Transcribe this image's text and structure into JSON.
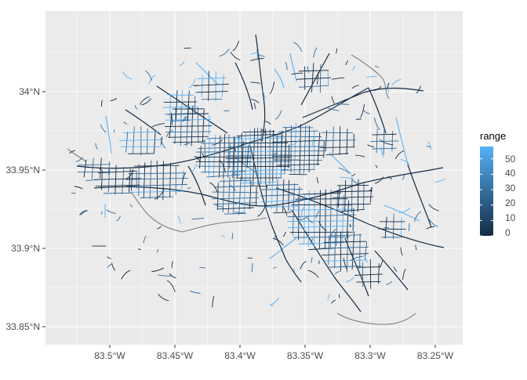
{
  "map": {
    "x_ticks": [
      "83.5°W",
      "83.45°W",
      "83.4°W",
      "83.35°W",
      "83.3°W",
      "83.25°W"
    ],
    "y_ticks": [
      "34°N",
      "33.95°N",
      "33.9°N",
      "33.85°N"
    ],
    "colors": {
      "panel_bg": "#ebebeb",
      "grid": "#ffffff",
      "road_dark": "#132b43",
      "road_mid": "#336a98",
      "road_light": "#56b1f7",
      "road_na": "#7f7f7f"
    }
  },
  "legend": {
    "title": "range",
    "labels": [
      "50",
      "40",
      "30",
      "20",
      "10",
      "0"
    ],
    "scale_min": 0,
    "scale_max": 58,
    "gradient_low": "#132b43",
    "gradient_high": "#56b1f7"
  }
}
